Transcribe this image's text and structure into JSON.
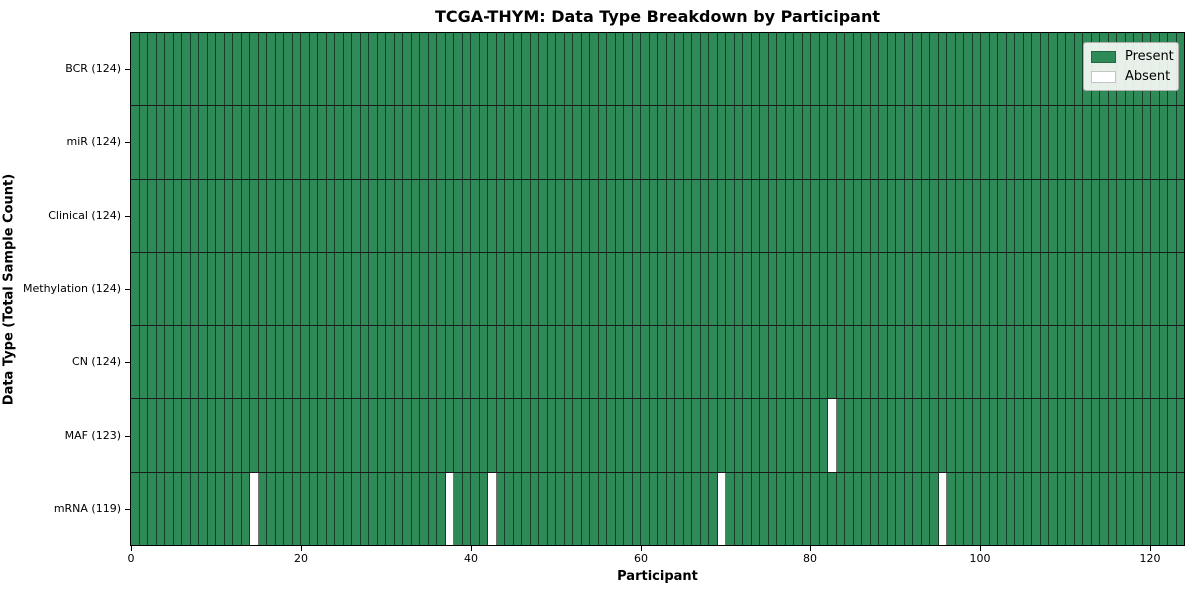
{
  "colors": {
    "present": "#2e8b57",
    "absent": "#ffffff",
    "cell_edge": "rgba(0,0,0,0.55)",
    "row_divider": "#1a1a1a",
    "spine": "#000000"
  },
  "chart_data": {
    "type": "heatmap",
    "title": "TCGA-THYM: Data Type Breakdown by Participant",
    "xlabel": "Participant",
    "ylabel": "Data Type (Total Sample Count)",
    "n_participants": 124,
    "xlim": [
      0,
      124
    ],
    "x_ticks": [
      0,
      20,
      40,
      60,
      80,
      100,
      120
    ],
    "grid": false,
    "legend_position": "upper right",
    "rows": [
      {
        "data_type": "BCR",
        "label": "BCR (124)",
        "count": 124,
        "absent_participants": []
      },
      {
        "data_type": "miR",
        "label": "miR (124)",
        "count": 124,
        "absent_participants": []
      },
      {
        "data_type": "Clinical",
        "label": "Clinical (124)",
        "count": 124,
        "absent_participants": []
      },
      {
        "data_type": "Methylation",
        "label": "Methylation (124)",
        "count": 124,
        "absent_participants": []
      },
      {
        "data_type": "CN",
        "label": "CN (124)",
        "count": 124,
        "absent_participants": []
      },
      {
        "data_type": "MAF",
        "label": "MAF (123)",
        "count": 123,
        "absent_participants": [
          82
        ]
      },
      {
        "data_type": "mRNA",
        "label": "mRNA (119)",
        "count": 119,
        "absent_participants": [
          14,
          37,
          42,
          69,
          95
        ]
      }
    ],
    "legend": [
      {
        "label": "Present",
        "color": "#2e8b57"
      },
      {
        "label": "Absent",
        "color": "#ffffff"
      }
    ]
  }
}
